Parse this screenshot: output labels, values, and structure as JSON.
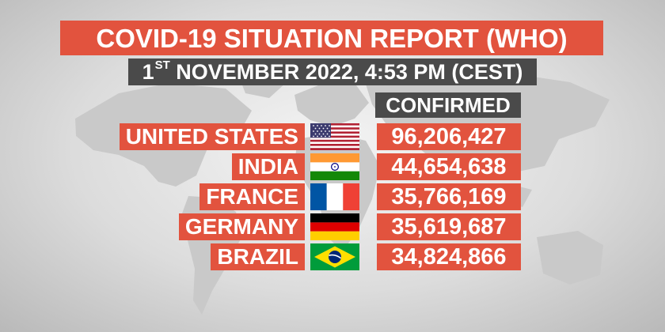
{
  "title": "COVID-19 SITUATION REPORT (WHO)",
  "subtitle": {
    "day": "1",
    "suffix": "ST",
    "rest": " NOVEMBER 2022, 4:53 PM (CEST)"
  },
  "column_header": "CONFIRMED",
  "colors": {
    "banner_red": "#e2533e",
    "banner_dark": "#4a4a4a",
    "text": "#ffffff"
  },
  "rows": [
    {
      "country": "UNITED STATES",
      "flag": "us-flag",
      "confirmed": "96,206,427"
    },
    {
      "country": "INDIA",
      "flag": "india-flag",
      "confirmed": "44,654,638"
    },
    {
      "country": "FRANCE",
      "flag": "france-flag",
      "confirmed": "35,766,169"
    },
    {
      "country": "GERMANY",
      "flag": "germany-flag",
      "confirmed": "35,619,687"
    },
    {
      "country": "BRAZIL",
      "flag": "brazil-flag",
      "confirmed": "34,824,866"
    }
  ]
}
